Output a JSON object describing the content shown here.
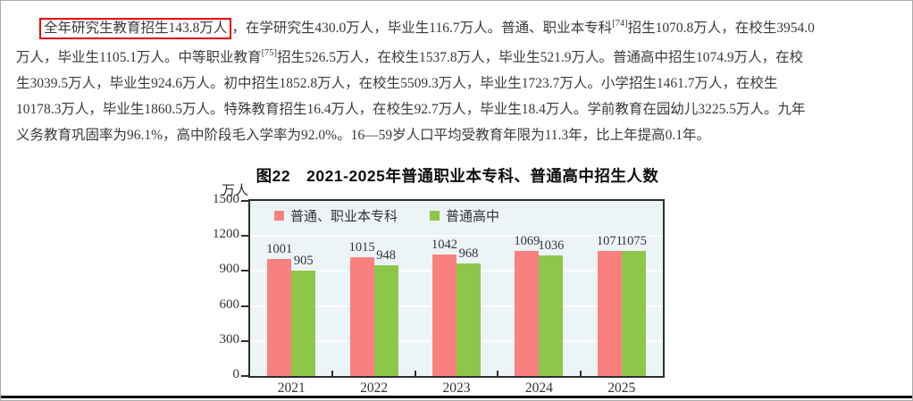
{
  "paragraph": {
    "highlighted": "全年研究生教育招生143.8万人",
    "line1_mid": "，在学研究生430.0万人，毕业生116.7万人。普通、职业本专科",
    "sup1": "[74]",
    "line1_end": "招生1070.8万人，在校生3954.0",
    "line2_a": "万人，毕业生1105.1万人。中等职业教育",
    "sup2": "[75]",
    "line2_b": "招生526.5万人，在校生1537.8万人，毕业生521.9万人。普通高中招生1074.9万人，在校",
    "line3": "生3039.5万人，毕业生924.6万人。初中招生1852.8万人，在校生5509.3万人，毕业生1723.7万人。小学招生1461.7万人，在校生",
    "line4": "10178.3万人，毕业生1860.5万人。特殊教育招生16.4万人，在校生92.7万人，毕业生18.4万人。学前教育在园幼儿3225.5万人。九年",
    "line5": "义务教育巩固率为96.1%，高中阶段毛入学率为92.0%。16—59岁人口平均受教育年限为11.3年，比上年提高0.1年。"
  },
  "chart_data": {
    "type": "bar",
    "title": "图22　2021-2025年普通职业本专科、普通高中招生人数",
    "unit_label": "万人",
    "categories": [
      "2021",
      "2022",
      "2023",
      "2024",
      "2025"
    ],
    "series": [
      {
        "name": "普通、职业本专科",
        "color": "#fa8080",
        "values": [
          1001,
          1015,
          1042,
          1069,
          1071
        ]
      },
      {
        "name": "普通高中",
        "color": "#8cc74a",
        "values": [
          905,
          948,
          968,
          1036,
          1075
        ]
      }
    ],
    "ylim": [
      0,
      1500
    ],
    "yticks": [
      0,
      300,
      600,
      900,
      1200,
      1500
    ],
    "grid": true,
    "legend_position": "top-left",
    "plot_bg": "#edf4f7"
  },
  "colors": {
    "highlight_box": "#e30000",
    "plot_border": "#2e2e2e",
    "bottom_rule": "#000000"
  }
}
